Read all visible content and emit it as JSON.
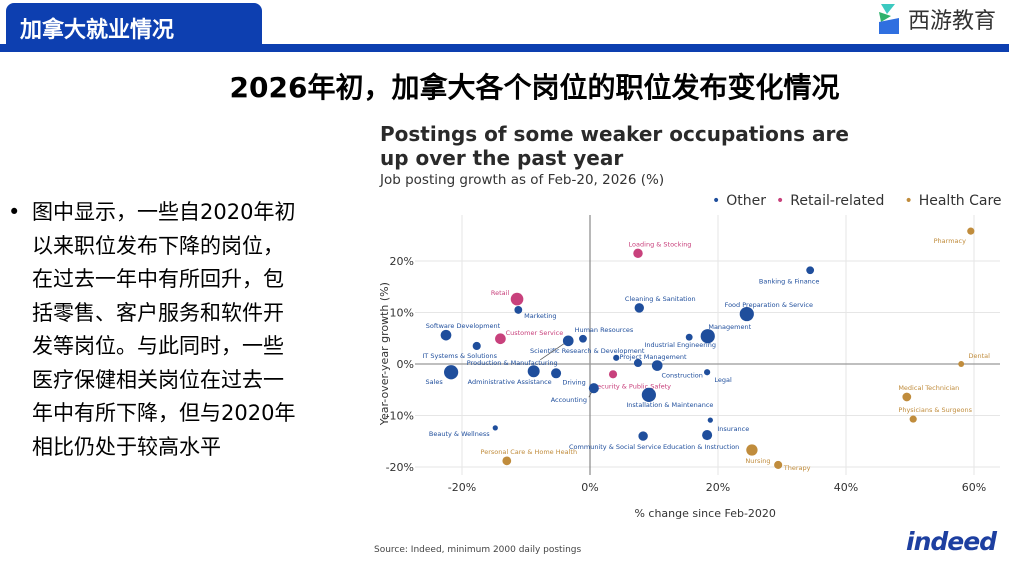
{
  "header": {
    "section_tab": "加拿大就业情况",
    "brand": "西游教育"
  },
  "slide_title": "2026年初，加拿大各个岗位的职位发布变化情况",
  "bullet_lines": [
    "图中显示，一些自2020年初",
    "以来职位发布下降的岗位，",
    "在过去一年中有所回升，包",
    "括零售、客户服务和软件开",
    "发等岗位。与此同时，一些",
    "医疗保健相关岗位在过去一",
    "年中有所下降，但与2020年",
    "相比仍处于较高水平"
  ],
  "colors": {
    "accent": "#0d3fb0",
    "Other": "#1f4e9c",
    "Retail-related": "#c8417c",
    "Health Care": "#c08c3c"
  },
  "chart_data": {
    "type": "scatter",
    "title": "Postings of some weaker occupations are up over the past year",
    "title_lines": [
      "Postings of some weaker occupations are",
      "up over the past year"
    ],
    "subtitle": "Job posting growth as of Feb-20, 2026 (%)",
    "xlabel": "% change since Feb-2020",
    "ylabel": "Year-over-year growth (%)",
    "xlim": [
      -28,
      63
    ],
    "ylim": [
      -21,
      27
    ],
    "xticks": [
      "-20%",
      "0%",
      "20%",
      "40%",
      "60%"
    ],
    "xtick_values": [
      -20,
      0,
      20,
      40,
      60
    ],
    "yticks": [
      "20%",
      "10%",
      "0%",
      "-10%",
      "-20%"
    ],
    "ytick_values": [
      20,
      10,
      0,
      -10,
      -20
    ],
    "legend": [
      "Other",
      "Retail-related",
      "Health Care"
    ],
    "legend_position": "top-right",
    "grid": true,
    "source": "Source: Indeed, minimum 2000 daily postings",
    "brand_logo": "indeed",
    "points": [
      {
        "label": "Loading & Stocking",
        "group": "Retail-related",
        "x": 7.5,
        "y": 21.5,
        "size": 2
      },
      {
        "label": "Banking & Finance",
        "group": "Other",
        "x": 34.4,
        "y": 18.2,
        "size": 1.5
      },
      {
        "label": "Pharmacy",
        "group": "Health Care",
        "x": 59.5,
        "y": 25.8,
        "size": 1.3
      },
      {
        "label": "Retail",
        "group": "Retail-related",
        "x": -11.4,
        "y": 12.6,
        "size": 3
      },
      {
        "label": "Marketing",
        "group": "Other",
        "x": -11.2,
        "y": 10.5,
        "size": 1.5
      },
      {
        "label": "Cleaning & Sanitation",
        "group": "Other",
        "x": 7.7,
        "y": 10.9,
        "size": 2
      },
      {
        "label": "Food Preparation & Service",
        "group": "Other",
        "x": 24.5,
        "y": 9.7,
        "size": 3.5
      },
      {
        "label": "Management",
        "group": "Other",
        "x": 18.4,
        "y": 5.4,
        "size": 3.5
      },
      {
        "label": "Industrial Engineering",
        "group": "Other",
        "x": 15.5,
        "y": 5.2,
        "size": 1.2
      },
      {
        "label": "Software Development",
        "group": "Other",
        "x": -22.5,
        "y": 5.6,
        "size": 2.4
      },
      {
        "label": "Customer Service",
        "group": "Retail-related",
        "x": -14,
        "y": 4.9,
        "size": 2.4
      },
      {
        "label": "Human Resources",
        "group": "Other",
        "x": -1.1,
        "y": 4.9,
        "size": 1.5
      },
      {
        "label": "Scientific Research & Development",
        "group": "Other",
        "x": 4.1,
        "y": 1.2,
        "size": 1
      },
      {
        "label": "IT Systems & Solutions",
        "group": "Other",
        "x": -17.7,
        "y": 3.5,
        "size": 1.6
      },
      {
        "label": "Production & Manufacturing",
        "group": "Other",
        "x": -3.4,
        "y": 4.5,
        "size": 2.4
      },
      {
        "label": "Project Management",
        "group": "Other",
        "x": 7.5,
        "y": 0.2,
        "size": 1.6
      },
      {
        "label": "Construction",
        "group": "Other",
        "x": 10.5,
        "y": -0.3,
        "size": 2.4
      },
      {
        "label": "Legal",
        "group": "Other",
        "x": 18.3,
        "y": -1.6,
        "size": 1
      },
      {
        "label": "Sales",
        "group": "Other",
        "x": -21.7,
        "y": -1.6,
        "size": 3.5
      },
      {
        "label": "Administrative Assistance",
        "group": "Other",
        "x": -8.8,
        "y": -1.4,
        "size": 2.8
      },
      {
        "label": "Driving",
        "group": "Other",
        "x": -5.3,
        "y": -1.8,
        "size": 2.2
      },
      {
        "label": "Security & Public Safety",
        "group": "Retail-related",
        "x": 3.6,
        "y": -2,
        "size": 1.6
      },
      {
        "label": "Accounting",
        "group": "Other",
        "x": 0.6,
        "y": -4.7,
        "size": 2.2
      },
      {
        "label": "Installation & Maintenance",
        "group": "Other",
        "x": 9.2,
        "y": -6,
        "size": 3.5
      },
      {
        "label": "Medical Technician",
        "group": "Health Care",
        "x": 49.5,
        "y": -6.4,
        "size": 1.8
      },
      {
        "label": "Physicians & Surgeons",
        "group": "Health Care",
        "x": 50.5,
        "y": -10.7,
        "size": 1.3
      },
      {
        "label": "Insurance",
        "group": "Other",
        "x": 18.8,
        "y": -10.9,
        "size": 0.7
      },
      {
        "label": "Beauty & Wellness",
        "group": "Other",
        "x": -14.8,
        "y": -12.4,
        "size": 0.7
      },
      {
        "label": "Community & Social Service",
        "group": "Other",
        "x": 8.3,
        "y": -14,
        "size": 2
      },
      {
        "label": "Education & Instruction",
        "group": "Other",
        "x": 18.3,
        "y": -13.8,
        "size": 2.2
      },
      {
        "label": "Nursing",
        "group": "Health Care",
        "x": 25.3,
        "y": -16.7,
        "size": 2.6
      },
      {
        "label": "Therapy",
        "group": "Health Care",
        "x": 29.4,
        "y": -19.6,
        "size": 1.6
      },
      {
        "label": "Personal Care & Home Health",
        "group": "Health Care",
        "x": -13,
        "y": -18.8,
        "size": 1.8
      },
      {
        "label": "Dental",
        "group": "Health Care",
        "x": 58,
        "y": 0,
        "size": 0.9
      }
    ]
  }
}
